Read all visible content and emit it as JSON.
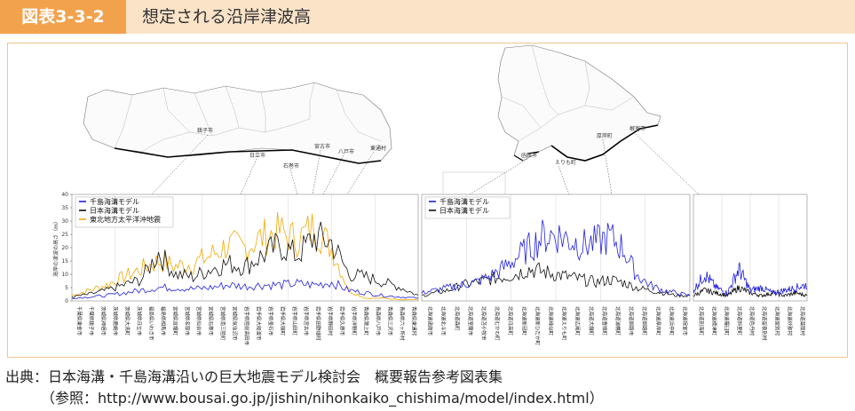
{
  "header": {
    "figure_label": "図表3-3-2",
    "title": "想定される沿岸津波高"
  },
  "source": {
    "line1": "出典：日本海溝・千島海溝沿いの巨大地震モデル検討会　概要報告参考図表集",
    "line2": "（参照：http://www.bousai.go.jp/jishin/nihonkaiko_chishima/model/index.html）"
  },
  "maps": {
    "honshu_labels": [
      "銚子市",
      "日立市",
      "石巻市",
      "宮古市",
      "八戸市",
      "東通村"
    ],
    "hokkaido_labels": [
      "函館市",
      "えりも町",
      "厚岸町",
      "根室市"
    ]
  },
  "colors": {
    "chishima": "#1f1fe0",
    "nihonkaiko": "#111111",
    "tohoku2011": "#f2a800",
    "accent_orange": "#f2a24d",
    "header_bg": "#fbe3c8"
  },
  "chart_data": [
    {
      "type": "line",
      "title": "",
      "xlabel": "",
      "ylabel": "海岸の津波の高さ（m）",
      "ylim": [
        0,
        40
      ],
      "yticks": [
        0,
        5,
        10,
        15,
        20,
        25,
        30,
        35,
        40
      ],
      "legend_position": "top-left",
      "x": [
        0,
        5,
        10,
        15,
        20,
        25,
        30,
        35,
        40,
        45,
        50,
        55,
        60,
        65,
        70,
        75,
        80,
        85,
        90,
        95,
        100
      ],
      "series": [
        {
          "name": "千島海溝モデル",
          "values": [
            1,
            1.5,
            2,
            3,
            4,
            5,
            5,
            4.5,
            5,
            6,
            5.5,
            6,
            6,
            6.5,
            6,
            7,
            4,
            3,
            2,
            1.5,
            1
          ]
        },
        {
          "name": "日本海溝モデル",
          "values": [
            1.5,
            2.5,
            4,
            6,
            8,
            18,
            10,
            9,
            12,
            14,
            13,
            17,
            21,
            17,
            24,
            22,
            10,
            9,
            7,
            5,
            2
          ]
        },
        {
          "name": "東北地方太平洋沖地震",
          "values": [
            2,
            4,
            6,
            9,
            12,
            15,
            13,
            14,
            17,
            21,
            20,
            24,
            26,
            23,
            28,
            20,
            4,
            1,
            1,
            0.5,
            0.5
          ]
        }
      ],
      "municipalities": [
        "千葉県東金市",
        "千葉県銚子市",
        "茨城県神栖市",
        "茨城県鹿嶋市",
        "茨城県大洗町",
        "茨城県日立市",
        "福島県いわき市",
        "福島県相馬市",
        "宮城県亘理町",
        "宮城県名取市",
        "宮城県仙台市",
        "宮城県石巻市",
        "宮城県南三陸町",
        "宮城県気仙沼市",
        "岩手県陸前高田市",
        "岩手県大船渡市",
        "岩手県釜石市",
        "岩手県大槌町",
        "岩手県山田町",
        "岩手県宮古市",
        "岩手県田野畑村",
        "岩手県野田村",
        "岩手県久慈市",
        "岩手県洋野町",
        "青森県階上町",
        "青森県八戸市",
        "青森県三沢市",
        "青森県六ヶ所村",
        "青森県東通村"
      ]
    },
    {
      "type": "line",
      "title": "",
      "xlabel": "",
      "ylabel": "",
      "ylim": [
        0,
        40
      ],
      "legend_position": "top-left",
      "x": [
        0,
        5,
        10,
        15,
        20,
        25,
        30,
        35,
        40,
        45,
        50,
        55,
        60,
        65,
        70,
        75,
        80,
        85,
        90,
        95,
        100
      ],
      "series": [
        {
          "name": "千島海溝モデル",
          "values": [
            3,
            4,
            5,
            6,
            7,
            9,
            12,
            16,
            20,
            24,
            25,
            23,
            21,
            22,
            24,
            20,
            10,
            6,
            4,
            3,
            2
          ]
        },
        {
          "name": "日本海溝モデル",
          "values": [
            2,
            3,
            4,
            6,
            7,
            8,
            9,
            10,
            12,
            11,
            10,
            9,
            8,
            7,
            8,
            7,
            5,
            4,
            3,
            2,
            2
          ]
        }
      ],
      "municipalities": [
        "北海道函館市",
        "北海道北斗市",
        "北海道森町",
        "北海道室蘭市",
        "北海道苫小牧市",
        "北海道むかわ町",
        "北海道日高町",
        "北海道新冠町",
        "北海道新ひだか町",
        "北海道様似町",
        "北海道えりも町",
        "北海道広尾町",
        "北海道大樹町",
        "北海道豊頃町",
        "北海道浦幌町",
        "北海道釧路市",
        "北海道釧路町",
        "北海道厚岸町",
        "北海道浜中町",
        "北海道根室市"
      ]
    },
    {
      "type": "line",
      "title": "",
      "xlabel": "",
      "ylabel": "",
      "ylim": [
        0,
        40
      ],
      "x": [
        0,
        10,
        20,
        30,
        40,
        50,
        60,
        70,
        80,
        90,
        100
      ],
      "series": [
        {
          "name": "千島海溝モデル",
          "values": [
            4,
            10,
            5,
            3,
            12,
            4,
            5,
            3,
            4,
            5,
            6
          ]
        },
        {
          "name": "日本海溝モデル",
          "values": [
            2,
            4,
            3,
            2,
            5,
            3,
            2,
            3,
            2,
            3,
            2
          ]
        }
      ],
      "municipalities": [
        "北海道別海町",
        "北海道標津町",
        "北海道羅臼町",
        "北海道斜里町",
        "北海道色丹村",
        "北海道留夜別村",
        "北海道留別村",
        "北海道紗那村",
        "北海道蘂取村"
      ]
    }
  ]
}
